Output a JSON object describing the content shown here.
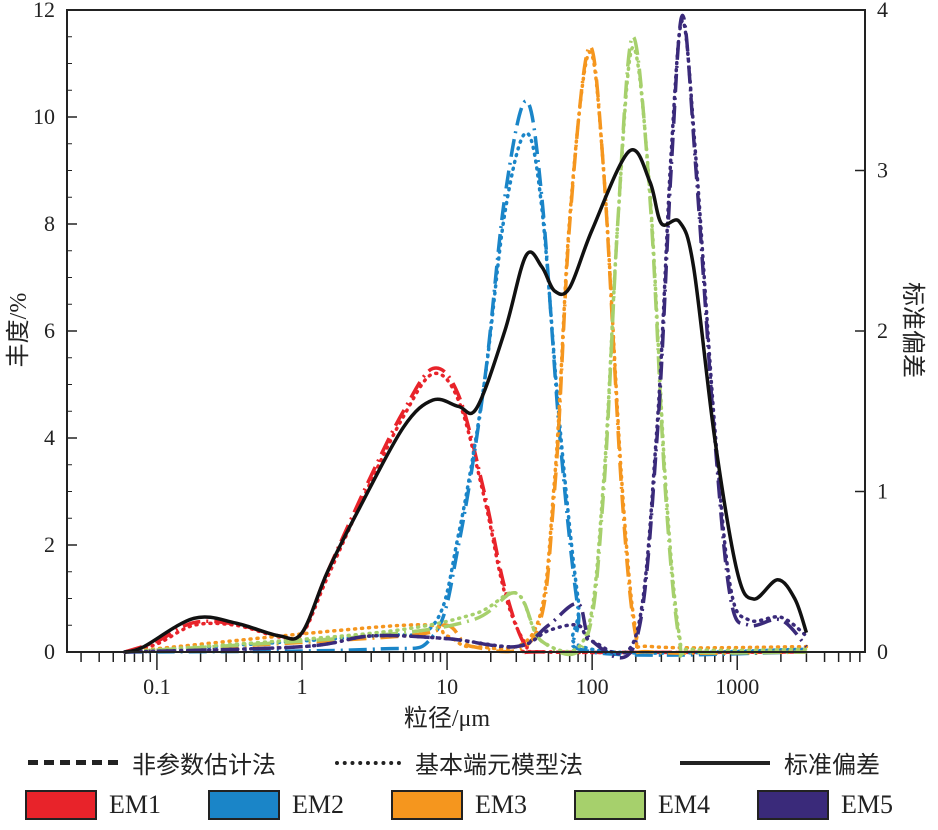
{
  "chart_data": {
    "type": "line",
    "xlabel": "粒径/μm",
    "ylabel": "丰度/%",
    "y2label": "标准偏差",
    "xscale": "log",
    "xlim": [
      0.024,
      7600
    ],
    "ylim": [
      0,
      12
    ],
    "y2lim": [
      0,
      4
    ],
    "xticks": [
      {
        "v": 0.1,
        "l": "0.1"
      },
      {
        "v": 1,
        "l": "1"
      },
      {
        "v": 10,
        "l": "10"
      },
      {
        "v": 100,
        "l": "100"
      },
      {
        "v": 1000,
        "l": "1000"
      }
    ],
    "yticks": [
      "0",
      "2",
      "4",
      "6",
      "8",
      "10",
      "12"
    ],
    "y2ticks": [
      "0",
      "1",
      "2",
      "3",
      "4"
    ],
    "line_legend": [
      {
        "style": "dashed",
        "label": "非参数估计法"
      },
      {
        "style": "dotted",
        "label": "基本端元模型法"
      },
      {
        "style": "solid",
        "label": "标准偏差"
      }
    ],
    "series": [
      {
        "name": "EM1",
        "color": "#e8232a",
        "nonparametric": [
          [
            0.06,
            0
          ],
          [
            0.1,
            0.2
          ],
          [
            0.18,
            0.55
          ],
          [
            0.35,
            0.52
          ],
          [
            0.7,
            0.3
          ],
          [
            1,
            0.35
          ],
          [
            1.5,
            1.5
          ],
          [
            3,
            3.3
          ],
          [
            5,
            4.5
          ],
          [
            8,
            5.3
          ],
          [
            12,
            4.8
          ],
          [
            18,
            3.0
          ],
          [
            25,
            1.2
          ],
          [
            35,
            0.1
          ],
          [
            50,
            0
          ],
          [
            3000,
            0
          ]
        ],
        "bem": [
          [
            0.06,
            0
          ],
          [
            0.1,
            0.15
          ],
          [
            0.18,
            0.5
          ],
          [
            0.35,
            0.5
          ],
          [
            0.7,
            0.28
          ],
          [
            1,
            0.33
          ],
          [
            1.5,
            1.4
          ],
          [
            3,
            3.2
          ],
          [
            5,
            4.4
          ],
          [
            8,
            5.2
          ],
          [
            12,
            4.7
          ],
          [
            18,
            2.9
          ],
          [
            25,
            1.1
          ],
          [
            35,
            0.15
          ],
          [
            50,
            0
          ],
          [
            3000,
            0
          ]
        ]
      },
      {
        "name": "EM2",
        "color": "#1a85c8",
        "nonparametric": [
          [
            0.06,
            0
          ],
          [
            3,
            0.05
          ],
          [
            8,
            0.3
          ],
          [
            12,
            2
          ],
          [
            18,
            5
          ],
          [
            25,
            8.5
          ],
          [
            35,
            10.3
          ],
          [
            45,
            8.5
          ],
          [
            60,
            4
          ],
          [
            80,
            0.8
          ],
          [
            100,
            0
          ],
          [
            3000,
            0
          ]
        ],
        "bem": [
          [
            0.06,
            0
          ],
          [
            3,
            0.3
          ],
          [
            8,
            0.5
          ],
          [
            12,
            2.2
          ],
          [
            18,
            5
          ],
          [
            25,
            8.2
          ],
          [
            35,
            9.7
          ],
          [
            45,
            8.3
          ],
          [
            60,
            4.2
          ],
          [
            80,
            1
          ],
          [
            100,
            0.05
          ],
          [
            3000,
            0.05
          ]
        ]
      },
      {
        "name": "EM3",
        "color": "#f5961e",
        "nonparametric": [
          [
            0.06,
            0
          ],
          [
            5,
            0.3
          ],
          [
            10,
            0.5
          ],
          [
            15,
            0.1
          ],
          [
            40,
            0.3
          ],
          [
            55,
            3
          ],
          [
            70,
            8
          ],
          [
            95,
            11.3
          ],
          [
            120,
            9
          ],
          [
            160,
            3
          ],
          [
            200,
            0.3
          ],
          [
            260,
            0
          ],
          [
            3000,
            0
          ]
        ],
        "bem": [
          [
            0.06,
            0
          ],
          [
            5,
            0.5
          ],
          [
            10,
            0.3
          ],
          [
            15,
            0.1
          ],
          [
            40,
            0.4
          ],
          [
            55,
            3.2
          ],
          [
            70,
            8.1
          ],
          [
            95,
            11.2
          ],
          [
            120,
            9
          ],
          [
            160,
            3.2
          ],
          [
            200,
            0.4
          ],
          [
            260,
            0.1
          ],
          [
            3000,
            0.1
          ]
        ]
      },
      {
        "name": "EM4",
        "color": "#a6d06c",
        "nonparametric": [
          [
            0.06,
            0
          ],
          [
            3,
            0.3
          ],
          [
            15,
            0.6
          ],
          [
            30,
            1.1
          ],
          [
            45,
            0.2
          ],
          [
            90,
            0.2
          ],
          [
            120,
            3
          ],
          [
            150,
            8
          ],
          [
            190,
            11.5
          ],
          [
            250,
            8.5
          ],
          [
            320,
            3
          ],
          [
            400,
            0.2
          ],
          [
            500,
            0
          ],
          [
            3000,
            0
          ]
        ],
        "bem": [
          [
            0.06,
            0
          ],
          [
            3,
            0.35
          ],
          [
            15,
            0.7
          ],
          [
            30,
            1.1
          ],
          [
            45,
            0.2
          ],
          [
            90,
            0.3
          ],
          [
            120,
            3.2
          ],
          [
            150,
            8
          ],
          [
            190,
            11.3
          ],
          [
            250,
            8.6
          ],
          [
            320,
            3.2
          ],
          [
            400,
            0.3
          ],
          [
            500,
            0.05
          ],
          [
            3000,
            0.05
          ]
        ]
      },
      {
        "name": "EM5",
        "color": "#3a2a7a",
        "nonparametric": [
          [
            0.06,
            0
          ],
          [
            1,
            0.1
          ],
          [
            3,
            0.3
          ],
          [
            10,
            0.25
          ],
          [
            30,
            0.1
          ],
          [
            50,
            0.5
          ],
          [
            80,
            0.9
          ],
          [
            100,
            0.2
          ],
          [
            200,
            0.2
          ],
          [
            280,
            4
          ],
          [
            350,
            9
          ],
          [
            420,
            11.9
          ],
          [
            520,
            9
          ],
          [
            700,
            4
          ],
          [
            900,
            1
          ],
          [
            1200,
            0.5
          ],
          [
            2000,
            0.6
          ],
          [
            3000,
            0.1
          ]
        ],
        "bem": [
          [
            0.06,
            0
          ],
          [
            1,
            0.1
          ],
          [
            3,
            0.3
          ],
          [
            10,
            0.25
          ],
          [
            30,
            0.1
          ],
          [
            50,
            0.4
          ],
          [
            80,
            0.5
          ],
          [
            100,
            0.2
          ],
          [
            200,
            0.3
          ],
          [
            280,
            4.2
          ],
          [
            350,
            9.3
          ],
          [
            420,
            11.8
          ],
          [
            520,
            9.2
          ],
          [
            700,
            4.2
          ],
          [
            900,
            1.2
          ],
          [
            1200,
            0.6
          ],
          [
            2000,
            0.65
          ],
          [
            3000,
            0.3
          ]
        ]
      }
    ],
    "std_dev": {
      "color": "#111",
      "axis": "right",
      "points": [
        [
          0.06,
          0
        ],
        [
          0.08,
          0.03
        ],
        [
          0.18,
          0.21
        ],
        [
          0.35,
          0.18
        ],
        [
          0.7,
          0.1
        ],
        [
          1,
          0.12
        ],
        [
          1.5,
          0.5
        ],
        [
          2.5,
          0.9
        ],
        [
          5,
          1.4
        ],
        [
          8,
          1.57
        ],
        [
          12,
          1.53
        ],
        [
          16,
          1.52
        ],
        [
          25,
          2.0
        ],
        [
          35,
          2.47
        ],
        [
          45,
          2.4
        ],
        [
          55,
          2.25
        ],
        [
          70,
          2.27
        ],
        [
          100,
          2.63
        ],
        [
          180,
          3.12
        ],
        [
          250,
          2.93
        ],
        [
          300,
          2.67
        ],
        [
          400,
          2.68
        ],
        [
          500,
          2.4
        ],
        [
          700,
          1.33
        ],
        [
          1000,
          0.5
        ],
        [
          1300,
          0.33
        ],
        [
          1900,
          0.45
        ],
        [
          2500,
          0.33
        ],
        [
          3000,
          0.12
        ]
      ]
    }
  }
}
